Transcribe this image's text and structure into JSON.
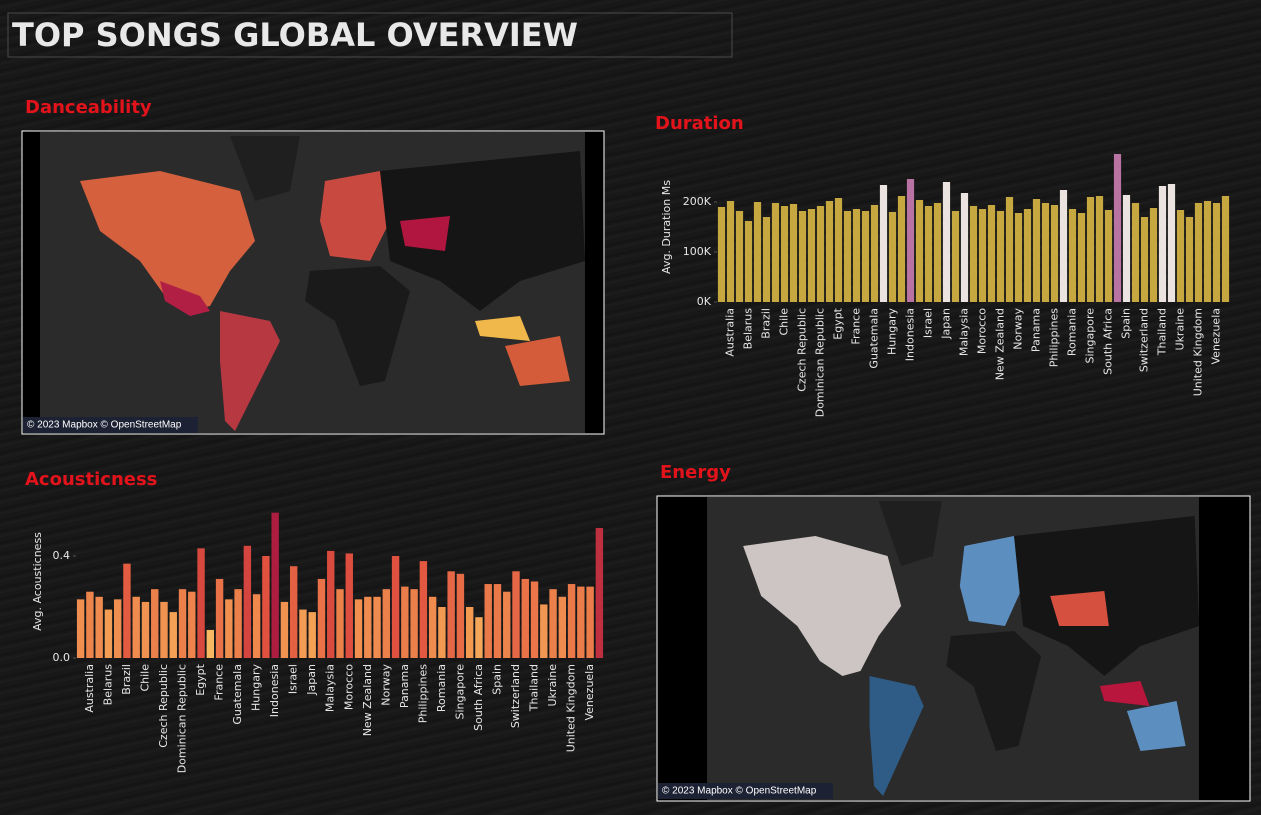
{
  "title": "TOP SONGS GLOBAL OVERVIEW",
  "chart_data": [
    {
      "type": "map",
      "title": "Danceability",
      "attribution": "© 2023 Mapbox © OpenStreetMap"
    },
    {
      "type": "bar",
      "title": "Duration",
      "y_label": "Avg. Duration Ms",
      "categories": [
        null,
        "Australia",
        null,
        "Belarus",
        null,
        "Brazil",
        null,
        "Chile",
        null,
        "Czech Republic",
        null,
        "Dominican Republic",
        null,
        "Egypt",
        null,
        "France",
        null,
        "Guatemala",
        null,
        "Hungary",
        null,
        "Indonesia",
        null,
        "Israel",
        null,
        "Japan",
        null,
        "Malaysia",
        null,
        "Morocco",
        null,
        "New Zealand",
        null,
        "Norway",
        null,
        "Panama",
        null,
        "Philippines",
        null,
        "Romania",
        null,
        "Singapore",
        null,
        "South Africa",
        null,
        "Spain",
        null,
        "Switzerland",
        null,
        "Thailand",
        null,
        "Ukraine",
        null,
        "United Kingdom",
        null,
        "Venezuela",
        null
      ],
      "values": [
        190000,
        202000,
        182000,
        162000,
        200000,
        170000,
        198000,
        192000,
        196000,
        182000,
        186000,
        192000,
        202000,
        208000,
        182000,
        186000,
        182000,
        194000,
        234000,
        180000,
        212000,
        246000,
        204000,
        192000,
        198000,
        240000,
        182000,
        218000,
        192000,
        186000,
        194000,
        182000,
        210000,
        178000,
        186000,
        206000,
        198000,
        194000,
        224000,
        186000,
        178000,
        210000,
        212000,
        184000,
        296000,
        214000,
        198000,
        170000,
        188000,
        232000,
        236000,
        184000,
        170000,
        198000,
        202000,
        198000,
        212000
      ],
      "colors": [
        "#c7a73f",
        "#c7a73f",
        "#c7a73f",
        "#c7a73f",
        "#c7a73f",
        "#c7a73f",
        "#c7a73f",
        "#c7a73f",
        "#c7a73f",
        "#c7a73f",
        "#c7a73f",
        "#c7a73f",
        "#c7a73f",
        "#c7a73f",
        "#c7a73f",
        "#c7a73f",
        "#c7a73f",
        "#c7a73f",
        "#ebe3df",
        "#c7a73f",
        "#c7a73f",
        "#b873a3",
        "#c7a73f",
        "#c7a73f",
        "#c7a73f",
        "#ebe3df",
        "#c7a73f",
        "#ebe3df",
        "#c7a73f",
        "#c7a73f",
        "#c7a73f",
        "#c7a73f",
        "#c7a73f",
        "#c7a73f",
        "#c7a73f",
        "#c7a73f",
        "#c7a73f",
        "#c7a73f",
        "#ebe3df",
        "#c7a73f",
        "#c7a73f",
        "#c7a73f",
        "#c7a73f",
        "#c7a73f",
        "#b873a3",
        "#ebe3df",
        "#c7a73f",
        "#c7a73f",
        "#c7a73f",
        "#ebe3df",
        "#ebe3df",
        "#c7a73f",
        "#c7a73f",
        "#c7a73f",
        "#c7a73f",
        "#c7a73f",
        "#c7a73f"
      ],
      "ylim": [
        0,
        300000
      ],
      "yticks": [
        {
          "value": 0,
          "label": "0K"
        },
        {
          "value": 100000,
          "label": "100K"
        },
        {
          "value": 200000,
          "label": "200K"
        }
      ]
    },
    {
      "type": "bar",
      "title": "Acousticness",
      "y_label": "Avg. Acousticness",
      "categories": [
        null,
        "Australia",
        null,
        "Belarus",
        null,
        "Brazil",
        null,
        "Chile",
        null,
        "Czech Republic",
        null,
        "Dominican Republic",
        null,
        "Egypt",
        null,
        "France",
        null,
        "Guatemala",
        null,
        "Hungary",
        null,
        "Indonesia",
        null,
        "Israel",
        null,
        "Japan",
        null,
        "Malaysia",
        null,
        "Morocco",
        null,
        "New Zealand",
        null,
        "Norway",
        null,
        "Panama",
        null,
        "Philippines",
        null,
        "Romania",
        null,
        "Singapore",
        null,
        "South Africa",
        null,
        "Spain",
        null,
        "Switzerland",
        null,
        "Thailand",
        null,
        "Ukraine",
        null,
        "United Kingdom",
        null,
        "Venezuela",
        null
      ],
      "values": [
        0.23,
        0.26,
        0.24,
        0.19,
        0.23,
        0.37,
        0.24,
        0.22,
        0.27,
        0.22,
        0.18,
        0.27,
        0.26,
        0.43,
        0.11,
        0.31,
        0.23,
        0.27,
        0.44,
        0.25,
        0.4,
        0.57,
        0.22,
        0.36,
        0.19,
        0.18,
        0.31,
        0.42,
        0.27,
        0.41,
        0.23,
        0.24,
        0.24,
        0.27,
        0.4,
        0.28,
        0.27,
        0.38,
        0.24,
        0.2,
        0.34,
        0.33,
        0.2,
        0.16,
        0.29,
        0.29,
        0.26,
        0.34,
        0.31,
        0.3,
        0.21,
        0.27,
        0.24,
        0.29,
        0.28,
        0.28,
        0.51
      ],
      "color_scale": [
        "#f9dc74",
        "#f39a52",
        "#e0513f",
        "#a3143f"
      ],
      "ylim": [
        0,
        0.6
      ],
      "yticks": [
        {
          "value": 0,
          "label": "0.0"
        },
        0.4
      ]
    },
    {
      "type": "map",
      "title": "Energy",
      "attribution": "© 2023 Mapbox © OpenStreetMap"
    }
  ]
}
